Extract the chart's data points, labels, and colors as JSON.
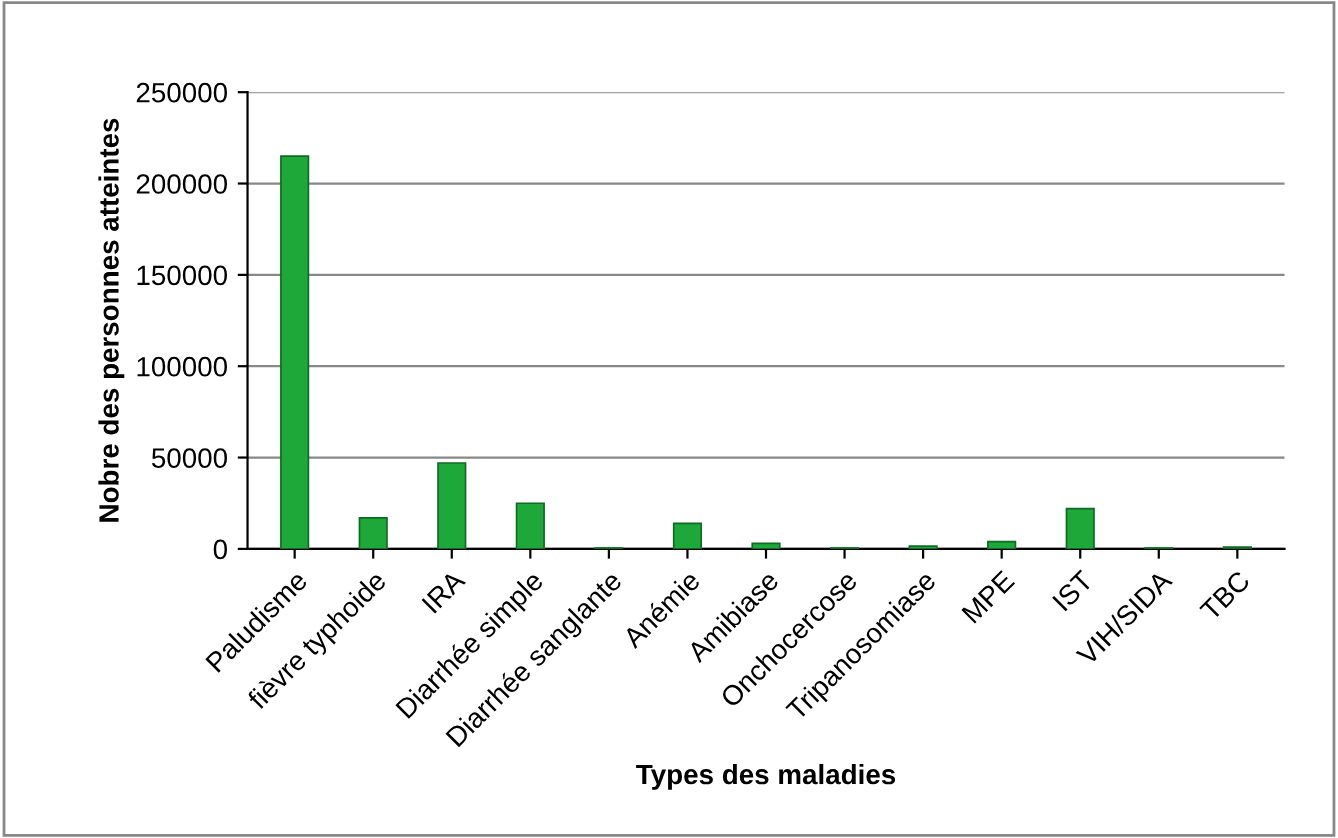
{
  "chart_data": {
    "type": "bar",
    "xlabel": "Types des maladies",
    "ylabel": "Nobre des personnes atteintes",
    "categories": [
      "Paludisme",
      "fièvre typhoide",
      "IRA",
      "Diarrhée simple",
      "Diarrhée sanglante",
      "Anémie",
      "Amibiase",
      "Onchocercose",
      "Tripanosomiase",
      "MPE",
      "IST",
      "VIH/SIDA",
      "TBC"
    ],
    "values": [
      215000,
      17000,
      47000,
      25000,
      500,
      14000,
      3000,
      500,
      1500,
      4000,
      22000,
      500,
      1000
    ],
    "color": "#1fa83a",
    "ylim": [
      0,
      250000
    ],
    "yticks": [
      0,
      50000,
      100000,
      150000,
      200000,
      250000
    ],
    "grid": "y"
  }
}
